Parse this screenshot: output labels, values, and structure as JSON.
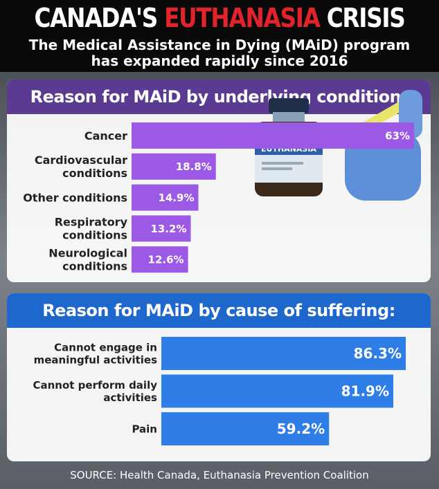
{
  "header": {
    "title_prefix": "CANADA'S",
    "title_highlight": "EUTHANASIA",
    "title_suffix": "CRISIS",
    "subtitle_line1": "The Medical Assistance in Dying (MAiD) program",
    "subtitle_line2": "has expanded rapidly since 2016"
  },
  "panel1": {
    "heading": "Reason for MAiD by underlying condition:",
    "vial_label": "EUTHANASIA"
  },
  "panel2": {
    "heading": "Reason for MAiD by cause of suffering:"
  },
  "source": "SOURCE: Health Canada, Euthanasia Prevention Coalition",
  "colors": {
    "purple": "#9b59e6",
    "purple_header": "#5b3b91",
    "blue": "#2f7ee8",
    "blue_header": "#1e67cc",
    "red": "#e3232b"
  },
  "chart_data": [
    {
      "type": "bar",
      "orientation": "horizontal",
      "title": "Reason for MAiD by underlying condition:",
      "categories": [
        [
          "Cancer"
        ],
        [
          "Cardiovascular",
          "conditions"
        ],
        [
          "Other conditions"
        ],
        [
          "Respiratory",
          "conditions"
        ],
        [
          "Neurological",
          "conditions"
        ]
      ],
      "values": [
        63,
        18.8,
        14.9,
        13.2,
        12.6
      ],
      "value_labels": [
        "63%",
        "18.8%",
        "14.9%",
        "13.2%",
        "12.6%"
      ],
      "xlim": [
        0,
        63
      ]
    },
    {
      "type": "bar",
      "orientation": "horizontal",
      "title": "Reason for MAiD by cause of suffering:",
      "categories": [
        [
          "Cannot engage in",
          "meaningful activities"
        ],
        [
          "Cannot perform daily",
          "activities"
        ],
        [
          "Pain"
        ]
      ],
      "values": [
        86.3,
        81.9,
        59.2
      ],
      "value_labels": [
        "86.3%",
        "81.9%",
        "59.2%"
      ],
      "xlim": [
        0,
        86.3
      ]
    }
  ]
}
